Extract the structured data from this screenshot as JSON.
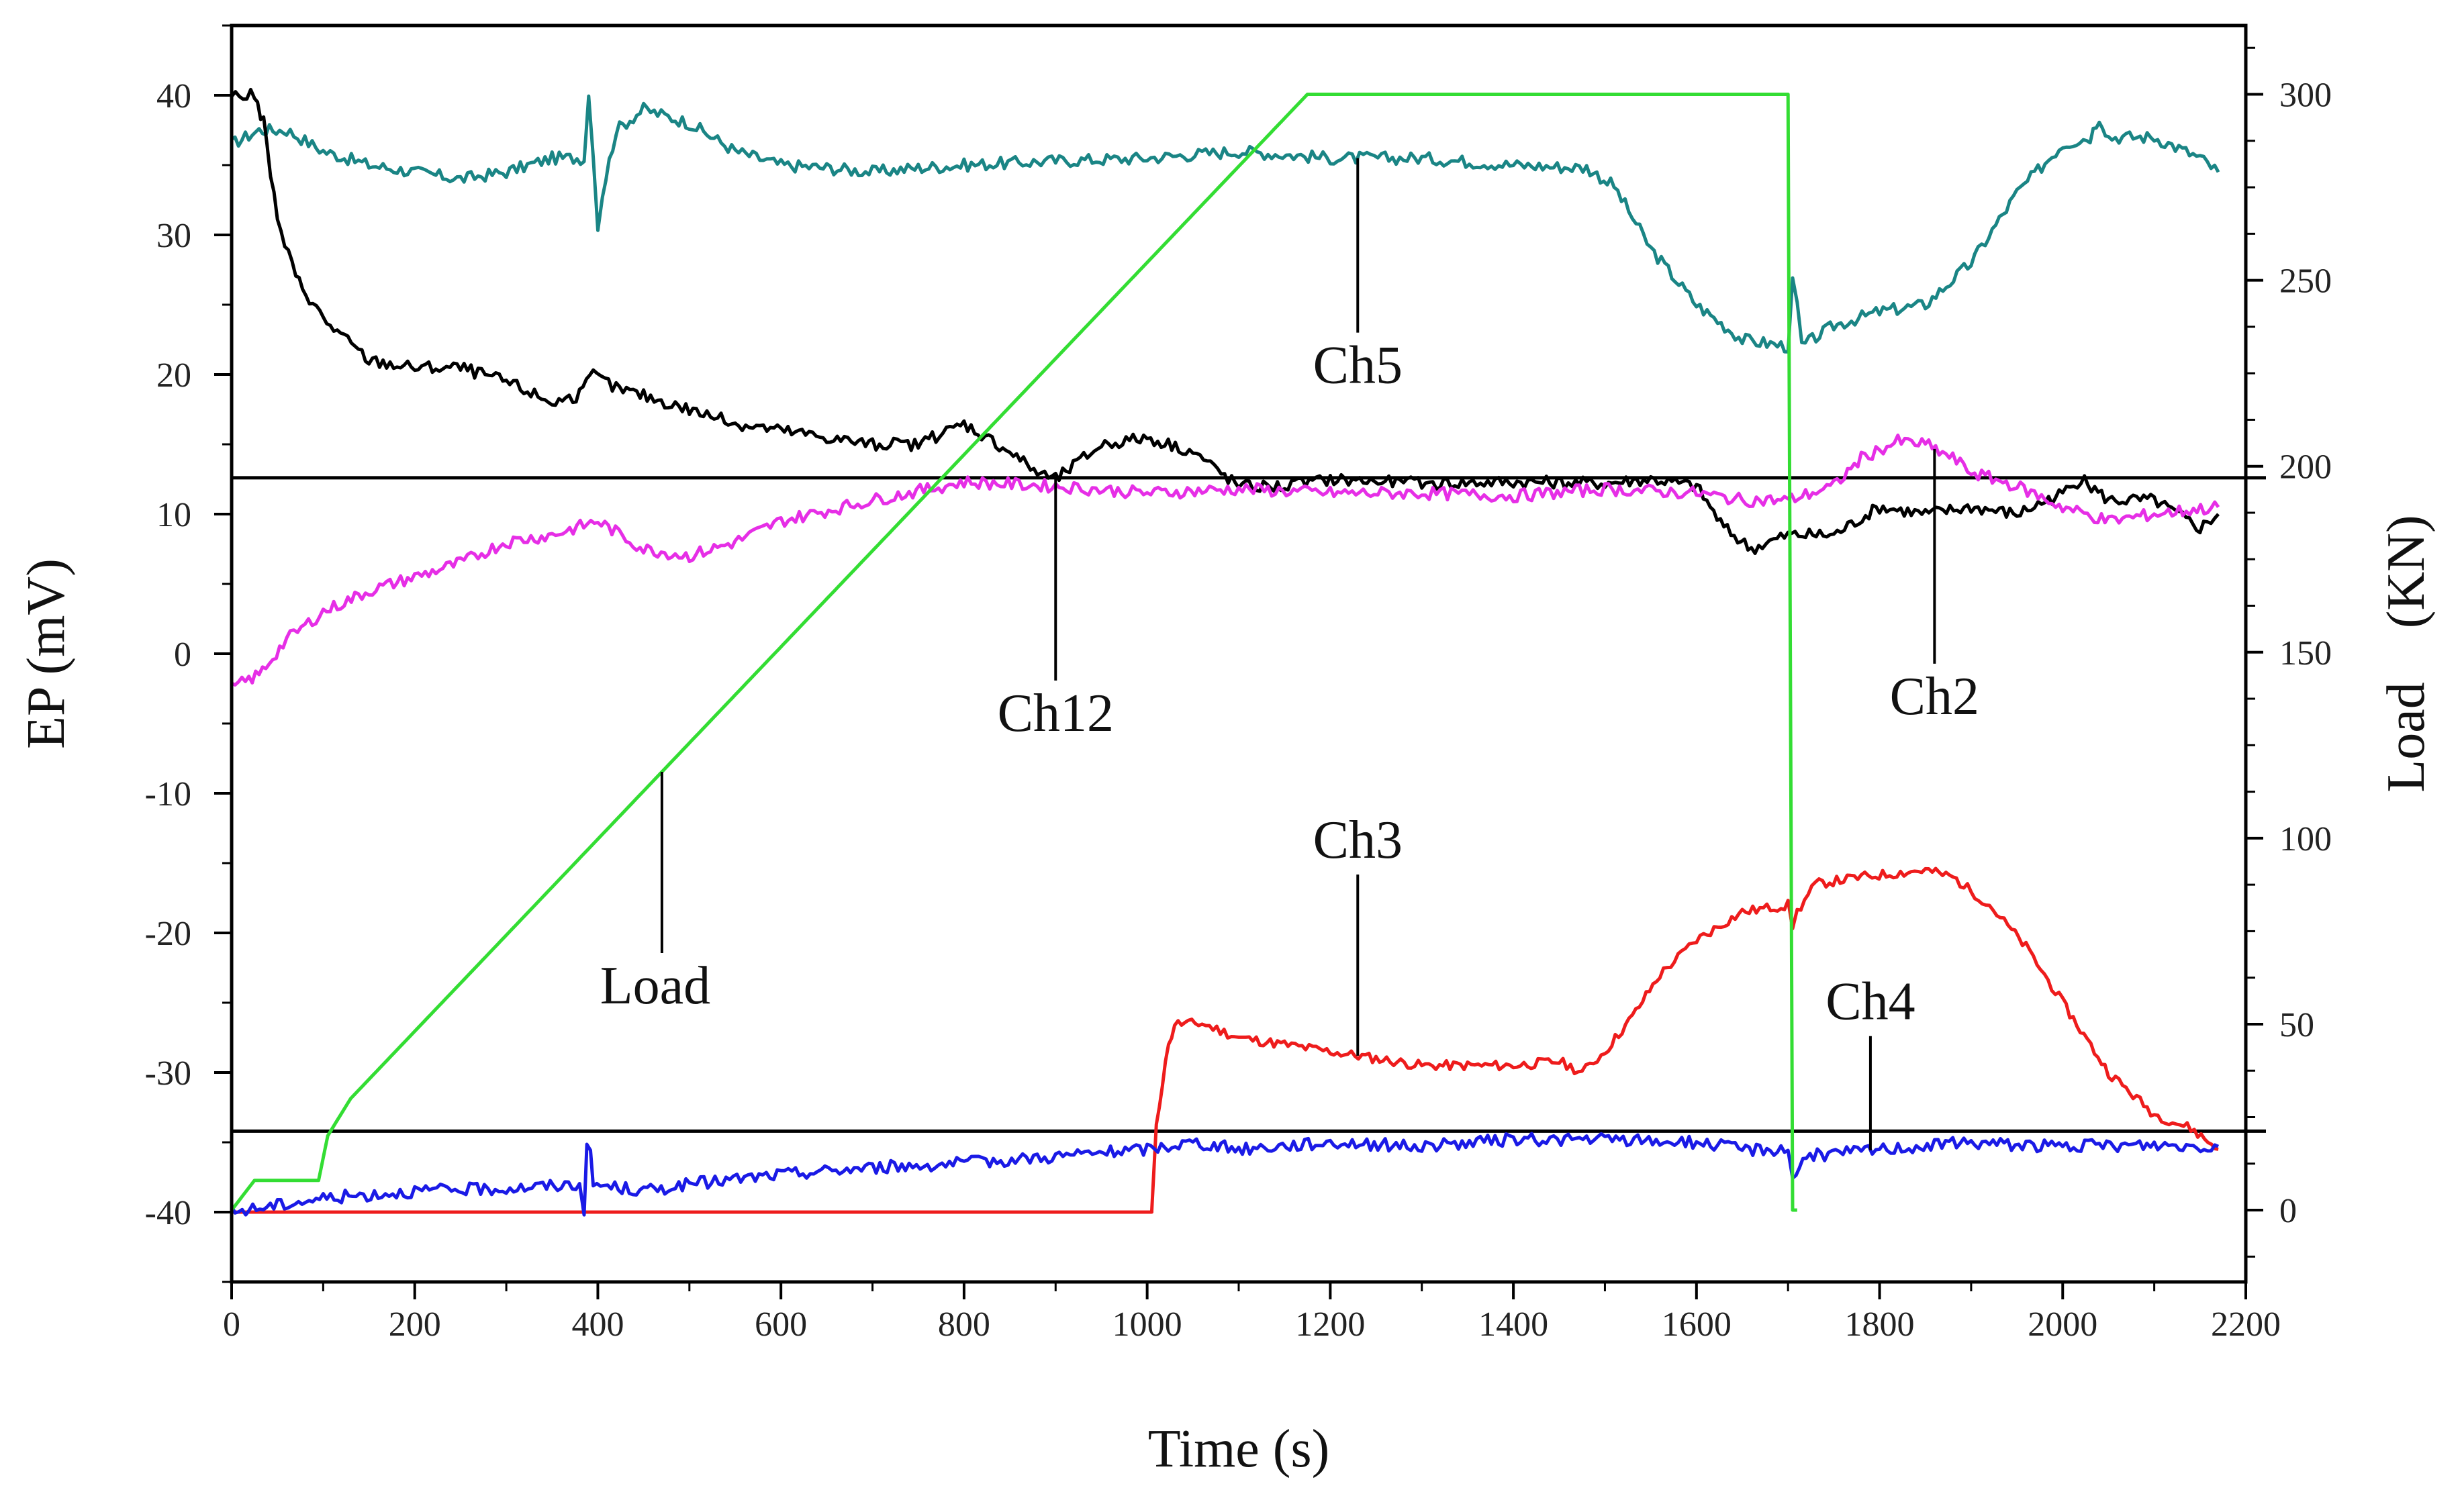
{
  "chart_data": {
    "type": "line",
    "title": "",
    "xlabel": "Time (s)",
    "ylabel": "EP (mV)",
    "y2label": "Load　(KN)",
    "xlim": [
      0,
      2200
    ],
    "ylim": [
      -45,
      45
    ],
    "y2lim": [
      -19.3,
      318.5
    ],
    "xticks": [
      0,
      200,
      400,
      600,
      800,
      1000,
      1200,
      1400,
      1600,
      1800,
      2000,
      2200
    ],
    "yticks": [
      -40,
      -30,
      -20,
      -10,
      0,
      10,
      20,
      30,
      40
    ],
    "y2ticks": [
      0,
      50,
      100,
      150,
      200,
      250,
      300
    ],
    "reference_lines": [
      {
        "axis": "y",
        "value": 12.6
      },
      {
        "axis": "y",
        "value": -34.2
      }
    ],
    "series": [
      {
        "name": "Ch5",
        "color": "#1a8585",
        "axis": "left",
        "points": [
          [
            0,
            36.5
          ],
          [
            30,
            37.5
          ],
          [
            60,
            37.5
          ],
          [
            100,
            36
          ],
          [
            150,
            35
          ],
          [
            200,
            34.5
          ],
          [
            250,
            34
          ],
          [
            300,
            34.5
          ],
          [
            350,
            35.5
          ],
          [
            385,
            35.5
          ],
          [
            390,
            40
          ],
          [
            395,
            36
          ],
          [
            400,
            30.5
          ],
          [
            405,
            33
          ],
          [
            420,
            37.5
          ],
          [
            450,
            39
          ],
          [
            500,
            38
          ],
          [
            550,
            36
          ],
          [
            600,
            35
          ],
          [
            650,
            34.8
          ],
          [
            700,
            34.5
          ],
          [
            750,
            34.8
          ],
          [
            800,
            35
          ],
          [
            900,
            35.3
          ],
          [
            1000,
            35.5
          ],
          [
            1100,
            36
          ],
          [
            1200,
            35.5
          ],
          [
            1300,
            35.5
          ],
          [
            1400,
            35
          ],
          [
            1480,
            34.8
          ],
          [
            1510,
            33.5
          ],
          [
            1550,
            29
          ],
          [
            1600,
            25
          ],
          [
            1650,
            22.5
          ],
          [
            1700,
            22
          ],
          [
            1705,
            26.5
          ],
          [
            1710,
            25
          ],
          [
            1715,
            22
          ],
          [
            1750,
            23.5
          ],
          [
            1800,
            24.5
          ],
          [
            1850,
            25
          ],
          [
            1900,
            28
          ],
          [
            1950,
            33
          ],
          [
            2000,
            36.5
          ],
          [
            2030,
            37
          ],
          [
            2040,
            38.5
          ],
          [
            2050,
            37
          ],
          [
            2100,
            37
          ],
          [
            2150,
            35.5
          ],
          [
            2170,
            34.5
          ]
        ]
      },
      {
        "name": "Ch12",
        "color": "#000000",
        "axis": "left",
        "points": [
          [
            0,
            40
          ],
          [
            25,
            40
          ],
          [
            35,
            38
          ],
          [
            50,
            31
          ],
          [
            70,
            27
          ],
          [
            100,
            24
          ],
          [
            150,
            21
          ],
          [
            200,
            20.5
          ],
          [
            250,
            20.5
          ],
          [
            300,
            19.5
          ],
          [
            350,
            18
          ],
          [
            380,
            18.5
          ],
          [
            395,
            20
          ],
          [
            420,
            19
          ],
          [
            450,
            18.5
          ],
          [
            500,
            17.5
          ],
          [
            550,
            16.5
          ],
          [
            600,
            16
          ],
          [
            650,
            15.5
          ],
          [
            700,
            15
          ],
          [
            750,
            15
          ],
          [
            800,
            16.5
          ],
          [
            850,
            14.5
          ],
          [
            880,
            13
          ],
          [
            900,
            12.5
          ],
          [
            950,
            15
          ],
          [
            1000,
            15.5
          ],
          [
            1050,
            14.5
          ],
          [
            1100,
            12
          ],
          [
            1150,
            12
          ],
          [
            1200,
            12.5
          ],
          [
            1300,
            12.2
          ],
          [
            1400,
            12.3
          ],
          [
            1500,
            12.2
          ],
          [
            1550,
            12.5
          ],
          [
            1600,
            12
          ],
          [
            1630,
            9
          ],
          [
            1660,
            7.5
          ],
          [
            1700,
            8.5
          ],
          [
            1750,
            8.5
          ],
          [
            1800,
            10.5
          ],
          [
            1850,
            10
          ],
          [
            1900,
            10.5
          ],
          [
            1950,
            10
          ],
          [
            2000,
            11.5
          ],
          [
            2020,
            12.5
          ],
          [
            2050,
            11
          ],
          [
            2100,
            11
          ],
          [
            2150,
            9
          ],
          [
            2170,
            10
          ]
        ]
      },
      {
        "name": "Ch2",
        "color": "#e62ee6",
        "axis": "left",
        "points": [
          [
            0,
            -2.5
          ],
          [
            30,
            -1.5
          ],
          [
            60,
            1
          ],
          [
            100,
            3
          ],
          [
            150,
            4.5
          ],
          [
            200,
            5.5
          ],
          [
            250,
            6.5
          ],
          [
            300,
            8
          ],
          [
            350,
            8.5
          ],
          [
            400,
            9.5
          ],
          [
            450,
            7.5
          ],
          [
            500,
            7
          ],
          [
            550,
            8
          ],
          [
            600,
            9.5
          ],
          [
            700,
            11
          ],
          [
            800,
            12.3
          ],
          [
            900,
            12
          ],
          [
            1000,
            11.5
          ],
          [
            1100,
            11.8
          ],
          [
            1200,
            11.5
          ],
          [
            1300,
            11.5
          ],
          [
            1400,
            11.3
          ],
          [
            1500,
            11.8
          ],
          [
            1600,
            11.5
          ],
          [
            1650,
            11
          ],
          [
            1700,
            11
          ],
          [
            1750,
            12
          ],
          [
            1780,
            14
          ],
          [
            1820,
            15.2
          ],
          [
            1850,
            15
          ],
          [
            1880,
            14
          ],
          [
            1900,
            13
          ],
          [
            1950,
            12
          ],
          [
            2000,
            10.5
          ],
          [
            2050,
            9.5
          ],
          [
            2100,
            10
          ],
          [
            2170,
            10.5
          ]
        ]
      },
      {
        "name": "Ch3",
        "color": "#ee1c1c",
        "axis": "left",
        "points": [
          [
            0,
            -40
          ],
          [
            1005,
            -40
          ],
          [
            1010,
            -34
          ],
          [
            1020,
            -29
          ],
          [
            1030,
            -26.5
          ],
          [
            1060,
            -26.5
          ],
          [
            1100,
            -27.5
          ],
          [
            1150,
            -28
          ],
          [
            1200,
            -28.5
          ],
          [
            1250,
            -29
          ],
          [
            1300,
            -29.5
          ],
          [
            1350,
            -29.5
          ],
          [
            1400,
            -29.5
          ],
          [
            1450,
            -29.2
          ],
          [
            1475,
            -30
          ],
          [
            1500,
            -28.5
          ],
          [
            1530,
            -26
          ],
          [
            1560,
            -23
          ],
          [
            1600,
            -20.5
          ],
          [
            1650,
            -18.5
          ],
          [
            1700,
            -18
          ],
          [
            1705,
            -19.5
          ],
          [
            1710,
            -18.5
          ],
          [
            1730,
            -16.5
          ],
          [
            1780,
            -16
          ],
          [
            1850,
            -15.5
          ],
          [
            1880,
            -16
          ],
          [
            1920,
            -18
          ],
          [
            1960,
            -21
          ],
          [
            2000,
            -25
          ],
          [
            2050,
            -30
          ],
          [
            2100,
            -33
          ],
          [
            2140,
            -34
          ],
          [
            2170,
            -35.5
          ]
        ]
      },
      {
        "name": "Ch4",
        "color": "#1a1ae6",
        "axis": "left",
        "points": [
          [
            0,
            -40
          ],
          [
            50,
            -39.5
          ],
          [
            100,
            -39
          ],
          [
            200,
            -38.5
          ],
          [
            300,
            -38.3
          ],
          [
            380,
            -38
          ],
          [
            385,
            -39.8
          ],
          [
            388,
            -35.5
          ],
          [
            392,
            -36
          ],
          [
            395,
            -38
          ],
          [
            450,
            -38.5
          ],
          [
            500,
            -38
          ],
          [
            600,
            -37.3
          ],
          [
            700,
            -36.8
          ],
          [
            800,
            -36.5
          ],
          [
            900,
            -36
          ],
          [
            1000,
            -35.5
          ],
          [
            1050,
            -35
          ],
          [
            1100,
            -35.5
          ],
          [
            1200,
            -35
          ],
          [
            1300,
            -35.3
          ],
          [
            1400,
            -34.8
          ],
          [
            1500,
            -34.8
          ],
          [
            1600,
            -35
          ],
          [
            1650,
            -35.5
          ],
          [
            1700,
            -35.5
          ],
          [
            1705,
            -37.5
          ],
          [
            1720,
            -36
          ],
          [
            1800,
            -35.5
          ],
          [
            1900,
            -35
          ],
          [
            2000,
            -35.3
          ],
          [
            2100,
            -35.2
          ],
          [
            2170,
            -35.3
          ]
        ]
      },
      {
        "name": "Load",
        "color": "#33dd33",
        "axis": "right",
        "points": [
          [
            0,
            0
          ],
          [
            25,
            8
          ],
          [
            95,
            8
          ],
          [
            105,
            20
          ],
          [
            130,
            30
          ],
          [
            1175,
            300
          ],
          [
            1700,
            300
          ],
          [
            1705,
            0
          ],
          [
            1710,
            0
          ]
        ]
      }
    ],
    "annotations": [
      {
        "text": "Ch5",
        "series": "Ch5",
        "anchor_x": 1230
      },
      {
        "text": "Ch12",
        "series": "Ch12",
        "anchor_x": 900
      },
      {
        "text": "Ch2",
        "series": "Ch2",
        "anchor_x": 1860
      },
      {
        "text": "Ch3",
        "series": "Ch3",
        "anchor_x": 1230
      },
      {
        "text": "Ch4",
        "series": "Ch4",
        "anchor_x": 1790
      },
      {
        "text": "Load",
        "series": "Load",
        "anchor_x": 470
      }
    ]
  }
}
